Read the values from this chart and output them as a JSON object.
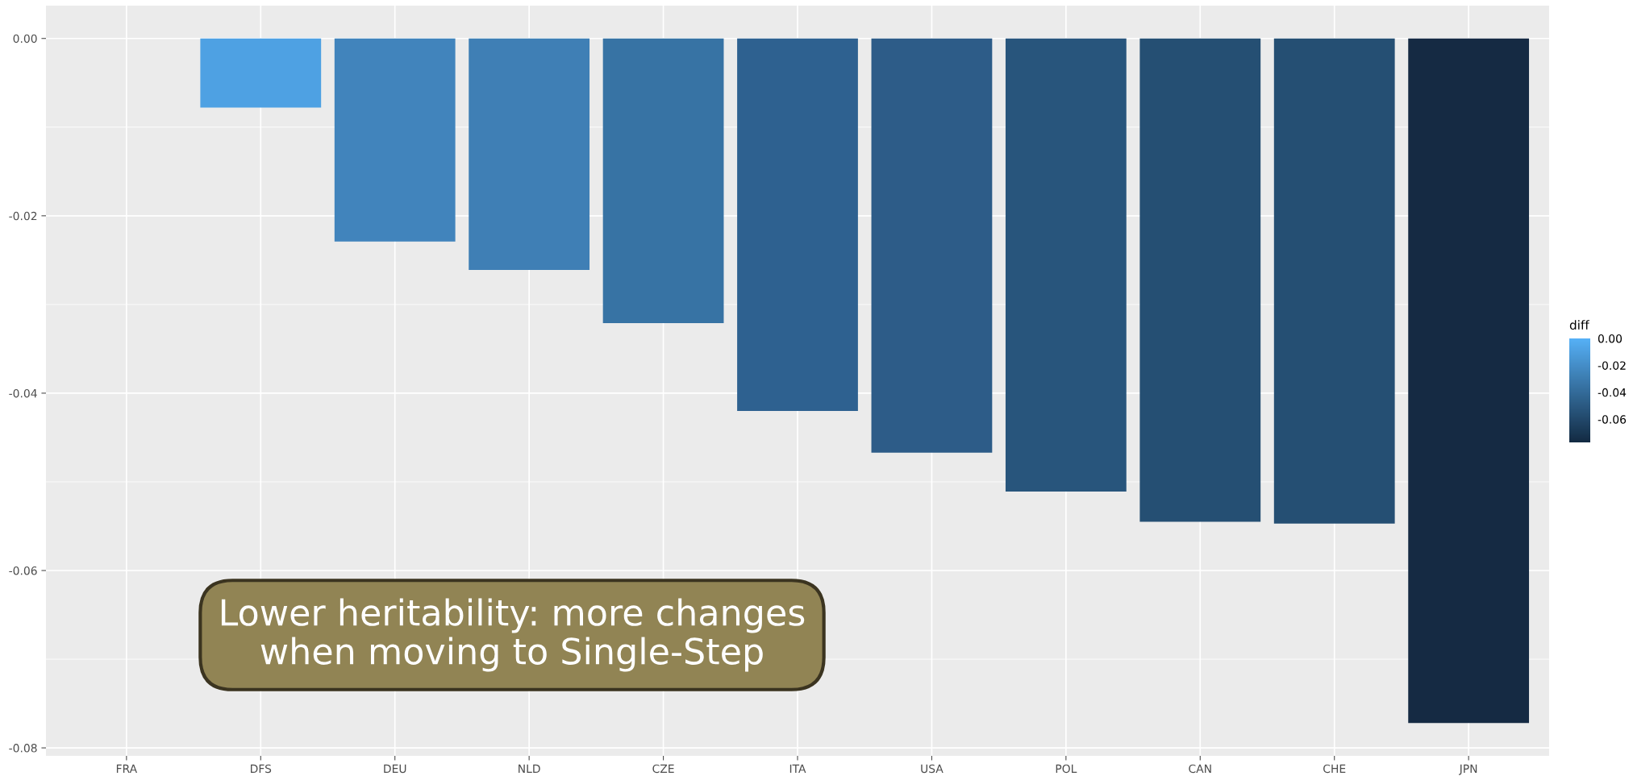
{
  "chart_data": {
    "type": "bar",
    "categories": [
      "FRA",
      "DFS",
      "DEU",
      "NLD",
      "CZE",
      "ITA",
      "USA",
      "POL",
      "CAN",
      "CHE",
      "JPN"
    ],
    "values": [
      0,
      -0.0078,
      -0.0229,
      -0.0261,
      -0.0321,
      -0.042,
      -0.0467,
      -0.0511,
      -0.0545,
      -0.0547,
      -0.0772
    ],
    "colors": [
      "#56b1f7",
      "#4ea1e3",
      "#4184bc",
      "#3f7fb5",
      "#3773a4",
      "#2e6190",
      "#2d5c88",
      "#28557c",
      "#254f73",
      "#254f73",
      "#152a43"
    ],
    "ylim": [
      -0.0809,
      0.0037
    ],
    "yticks": [
      {
        "value": 0,
        "label": "0.00"
      },
      {
        "value": -0.02,
        "label": "-0.02"
      },
      {
        "value": -0.04,
        "label": "-0.04"
      },
      {
        "value": -0.06,
        "label": "-0.06"
      },
      {
        "value": -0.08,
        "label": "-0.08"
      }
    ],
    "grid": true,
    "clabel": "diff",
    "clim": [
      -0.0772,
      0
    ],
    "cticks": [
      {
        "value": 0,
        "label": "0.00"
      },
      {
        "value": -0.02,
        "label": "-0.02"
      },
      {
        "value": -0.04,
        "label": "-0.04"
      },
      {
        "value": -0.06,
        "label": "-0.06"
      }
    ],
    "annotations": [
      "Lower heritability: more changes\nwhen moving to Single-Step"
    ]
  }
}
